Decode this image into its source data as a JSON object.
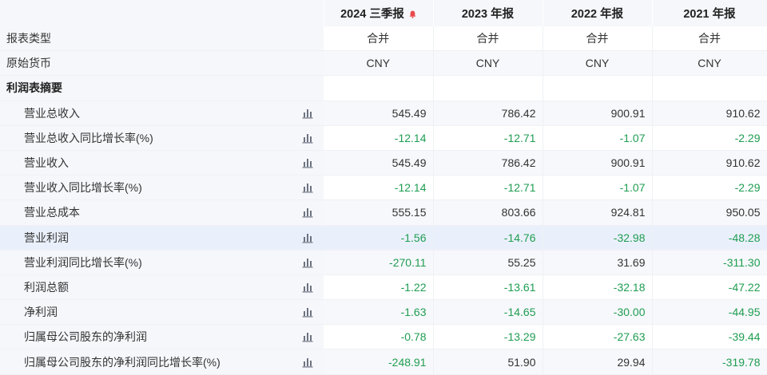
{
  "headers": [
    {
      "label": "2024 三季报",
      "bell": true
    },
    {
      "label": "2023 年报",
      "bell": false
    },
    {
      "label": "2022 年报",
      "bell": false
    },
    {
      "label": "2021 年报",
      "bell": false
    }
  ],
  "colors": {
    "negative": "#1f9d52",
    "bell": "#e84c4c",
    "icon": "#6b7280"
  },
  "rows": [
    {
      "label": "报表类型",
      "type": "meta",
      "values": [
        "合并",
        "合并",
        "合并",
        "合并"
      ]
    },
    {
      "label": "原始货币",
      "type": "meta",
      "values": [
        "CNY",
        "CNY",
        "CNY",
        "CNY"
      ]
    },
    {
      "label": "利润表摘要",
      "type": "section",
      "values": [
        "",
        "",
        "",
        ""
      ]
    },
    {
      "label": "营业总收入",
      "type": "metric",
      "values": [
        "545.49",
        "786.42",
        "900.91",
        "910.62"
      ]
    },
    {
      "label": "营业总收入同比增长率(%)",
      "type": "metric",
      "values": [
        "-12.14",
        "-12.71",
        "-1.07",
        "-2.29"
      ]
    },
    {
      "label": "营业收入",
      "type": "metric",
      "values": [
        "545.49",
        "786.42",
        "900.91",
        "910.62"
      ]
    },
    {
      "label": "营业收入同比增长率(%)",
      "type": "metric",
      "values": [
        "-12.14",
        "-12.71",
        "-1.07",
        "-2.29"
      ]
    },
    {
      "label": "营业总成本",
      "type": "metric",
      "values": [
        "555.15",
        "803.66",
        "924.81",
        "950.05"
      ]
    },
    {
      "label": "营业利润",
      "type": "metric",
      "highlight": true,
      "values": [
        "-1.56",
        "-14.76",
        "-32.98",
        "-48.28"
      ]
    },
    {
      "label": "营业利润同比增长率(%)",
      "type": "metric",
      "values": [
        "-270.11",
        "55.25",
        "31.69",
        "-311.30"
      ]
    },
    {
      "label": "利润总额",
      "type": "metric",
      "values": [
        "-1.22",
        "-13.61",
        "-32.18",
        "-47.22"
      ]
    },
    {
      "label": "净利润",
      "type": "metric",
      "values": [
        "-1.63",
        "-14.65",
        "-30.00",
        "-44.95"
      ]
    },
    {
      "label": "归属母公司股东的净利润",
      "type": "metric",
      "values": [
        "-0.78",
        "-13.29",
        "-27.63",
        "-39.44"
      ]
    },
    {
      "label": "归属母公司股东的净利润同比增长率(%)",
      "type": "metric",
      "values": [
        "-248.91",
        "51.90",
        "29.94",
        "-319.78"
      ]
    }
  ]
}
